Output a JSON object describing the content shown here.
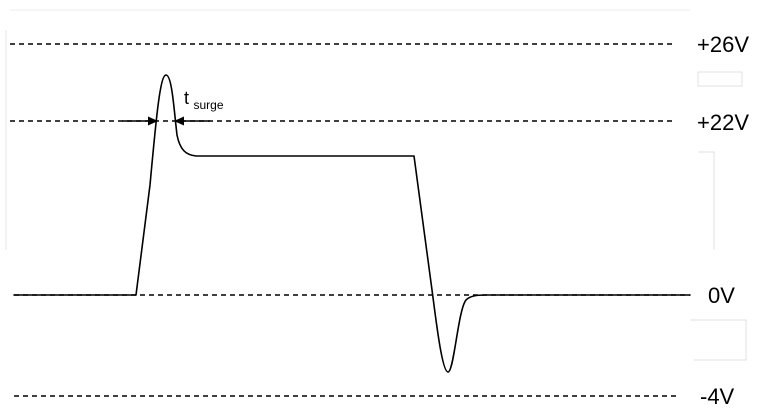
{
  "levels": {
    "plus26": "+26V",
    "plus22": "+22V",
    "zero": "0V",
    "minus4": "-4V"
  },
  "annotation": {
    "symbol": "t",
    "subscript": "surge"
  }
}
